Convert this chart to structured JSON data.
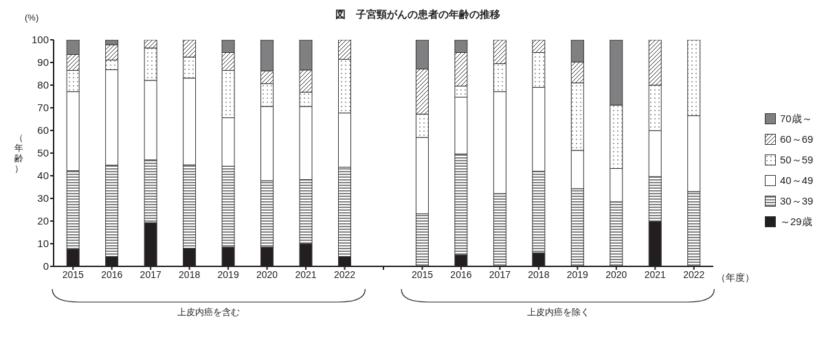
{
  "chart_data": {
    "type": "bar",
    "title": "図　子宮頸がんの患者の年齢の推移",
    "ylabel": "（年齢）",
    "xlabel": "（年度）",
    "stacked": true,
    "legend": "right",
    "grid": false,
    "categories": [
      "2015",
      "2016",
      "2017",
      "2018",
      "2019",
      "2020",
      "2021",
      "2022",
      null,
      "2015",
      "2016",
      "2017",
      "2018",
      "2019",
      "2020",
      "2021",
      "2022"
    ],
    "ylim": [
      0,
      100
    ],
    "yticks": [
      0,
      10,
      20,
      30,
      40,
      50,
      60,
      70,
      80,
      90,
      100
    ],
    "annotations": [
      "(%)",
      "上皮内癌を含む",
      "上皮内癌を除く"
    ],
    "series": [
      {
        "name": "～29歳",
        "color": "#231f20",
        "values": [
          7.6,
          4.3,
          19.3,
          7.9,
          8.5,
          8.5,
          10.0,
          4.3,
          null,
          0,
          5.1,
          0,
          6.0,
          0,
          0,
          19.8,
          0
        ]
      },
      {
        "name": "30～39",
        "color": "#333333",
        "values": [
          34.6,
          40.4,
          27.7,
          36.9,
          35.7,
          29.3,
          28.3,
          39.5,
          null,
          23.2,
          44.5,
          32.1,
          36.0,
          34.3,
          28.5,
          19.8,
          33.0
        ]
      },
      {
        "name": "40～49",
        "color": "#ffffff",
        "values": [
          34.9,
          42.1,
          35.1,
          38.3,
          21.4,
          32.8,
          32.3,
          23.9,
          null,
          33.7,
          25.1,
          45.0,
          37.0,
          16.9,
          14.7,
          20.3,
          33.5
        ]
      },
      {
        "name": "50～59",
        "color": "#333333",
        "values": [
          9.4,
          4.3,
          14.3,
          9.3,
          20.9,
          10.1,
          6.3,
          23.7,
          null,
          10.3,
          4.9,
          12.4,
          15.4,
          29.8,
          28.0,
          20.1,
          33.5
        ]
      },
      {
        "name": "60～69",
        "color": "#333333",
        "values": [
          7.0,
          6.7,
          3.6,
          7.6,
          7.9,
          5.6,
          9.8,
          8.6,
          null,
          19.9,
          14.8,
          10.5,
          5.6,
          9.2,
          0,
          20.0,
          0
        ]
      },
      {
        "name": "70歳～",
        "color": "#808083",
        "values": [
          6.5,
          2.2,
          0,
          0,
          5.6,
          13.7,
          13.3,
          0,
          null,
          12.9,
          5.6,
          0,
          0,
          9.8,
          28.8,
          0,
          0
        ]
      }
    ]
  }
}
